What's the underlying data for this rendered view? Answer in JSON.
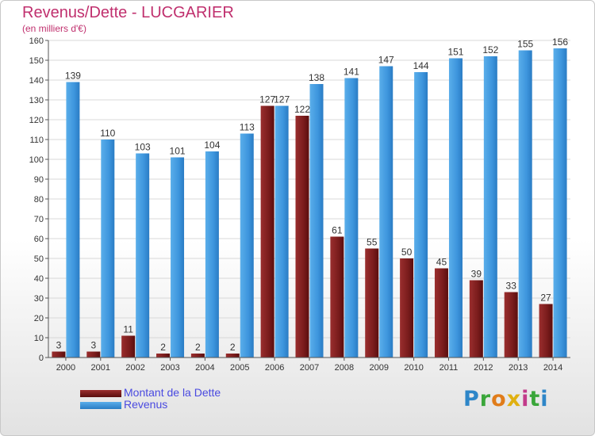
{
  "header": {
    "title": "Revenus/Dette - LUCGARIER",
    "subtitle": "(en milliers d'€)"
  },
  "chart_data": {
    "type": "bar",
    "categories": [
      "2000",
      "2001",
      "2002",
      "2003",
      "2004",
      "2005",
      "2006",
      "2007",
      "2008",
      "2009",
      "2010",
      "2011",
      "2012",
      "2013",
      "2014"
    ],
    "series": [
      {
        "name": "Montant de la Dette",
        "color": "#7a1c1c",
        "values": [
          3,
          3,
          11,
          2,
          2,
          2,
          127,
          122,
          61,
          55,
          50,
          45,
          39,
          33,
          27
        ]
      },
      {
        "name": "Revenus",
        "color": "#3d95dd",
        "values": [
          139,
          110,
          103,
          101,
          104,
          113,
          127,
          138,
          141,
          147,
          144,
          151,
          152,
          155,
          156
        ]
      }
    ],
    "ylim": [
      0,
      160
    ],
    "yticks": [
      0,
      10,
      20,
      30,
      40,
      50,
      60,
      70,
      80,
      90,
      100,
      110,
      120,
      130,
      140,
      150,
      160
    ],
    "grid": true,
    "legend_position": "bottom-left"
  },
  "legend": {
    "items": [
      {
        "label": "Montant de la Dette",
        "color": "#7a1c1c"
      },
      {
        "label": "Revenus",
        "color": "#3d95dd"
      }
    ]
  },
  "brand": {
    "letters": [
      {
        "char": "P",
        "color": "#2e86c8"
      },
      {
        "char": "r",
        "color": "#3aa63a"
      },
      {
        "char": "o",
        "color": "#e07c1a"
      },
      {
        "char": "x",
        "color": "#e0b010"
      },
      {
        "char": "i",
        "color": "#c23a8a"
      },
      {
        "char": "t",
        "color": "#3aa63a"
      },
      {
        "char": "i",
        "color": "#2e86c8"
      }
    ]
  }
}
